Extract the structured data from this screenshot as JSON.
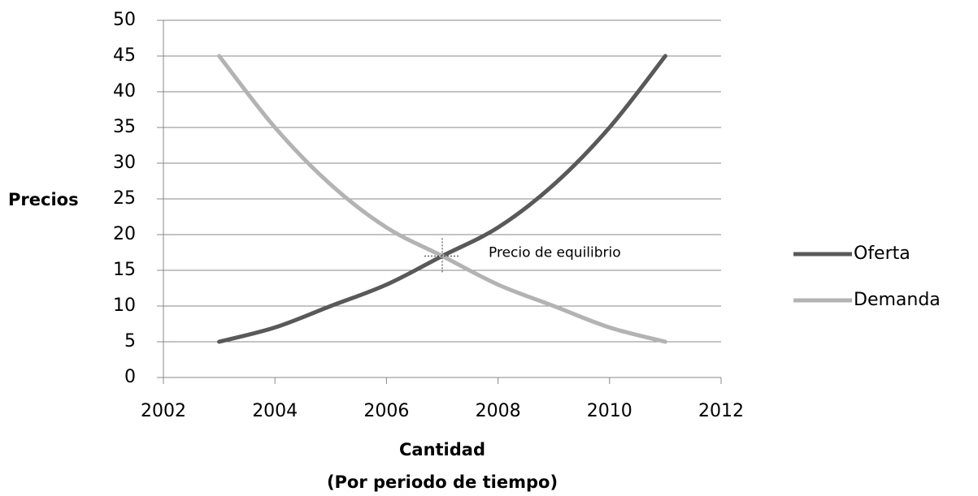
{
  "chart_data": {
    "type": "line",
    "ylabel": "Precios",
    "xlabel": [
      "Cantidad",
      "(Por periodo de tiempo)"
    ],
    "x": [
      2003,
      2004,
      2005,
      2006,
      2007,
      2008,
      2009,
      2010,
      2011
    ],
    "series": [
      {
        "name": "Oferta",
        "color": "#595959",
        "values": [
          5,
          7,
          10,
          13,
          17,
          21,
          27,
          35,
          45
        ]
      },
      {
        "name": "Demanda",
        "color": "#b3b3b3",
        "values": [
          45,
          35,
          27,
          21,
          17,
          13,
          10,
          7,
          5
        ]
      }
    ],
    "xlim": [
      2002,
      2012
    ],
    "xticks": [
      2002,
      2004,
      2006,
      2008,
      2010,
      2012
    ],
    "ylim": [
      0,
      50
    ],
    "yticks": [
      0,
      5,
      10,
      15,
      20,
      25,
      30,
      35,
      40,
      45,
      50
    ],
    "grid": true,
    "legend": "right",
    "annotation": {
      "text": "Precio de equilibrio",
      "x": 2007,
      "y": 17
    }
  }
}
